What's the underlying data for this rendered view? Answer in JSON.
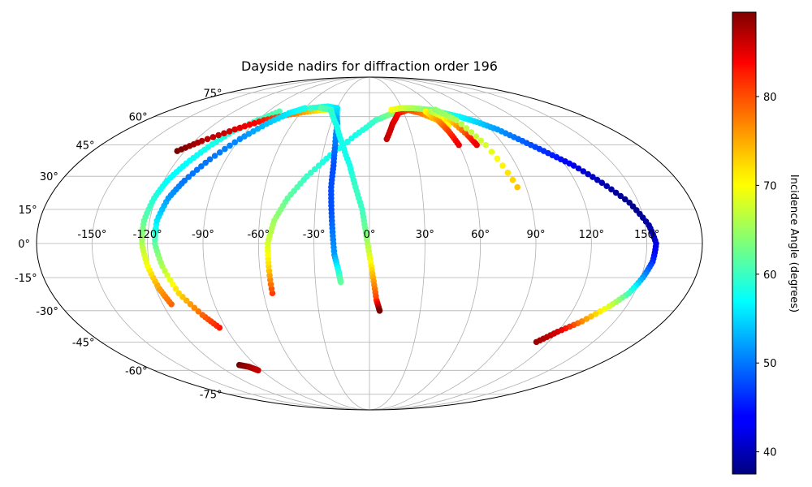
{
  "chart_data": {
    "type": "scatter",
    "projection": "mollweide",
    "title": "Dayside nadirs for diffraction order 196",
    "xlabel": "",
    "ylabel": "",
    "grid": true,
    "xlim": [
      -180,
      180
    ],
    "ylim": [
      -90,
      90
    ],
    "lon_ticks": [
      -150,
      -120,
      -90,
      -60,
      -30,
      0,
      30,
      60,
      90,
      120,
      150
    ],
    "lon_tick_labels": [
      "-150°",
      "-120°",
      "-90°",
      "-60°",
      "-30°",
      "0°",
      "30°",
      "60°",
      "90°",
      "120°",
      "150°"
    ],
    "lat_ticks": [
      -75,
      -60,
      -45,
      -30,
      -15,
      0,
      15,
      30,
      45,
      60,
      75
    ],
    "lat_tick_labels": [
      "-75°",
      "-60°",
      "-45°",
      "-30°",
      "-15°",
      "0°",
      "15°",
      "30°",
      "45°",
      "60°",
      "75°"
    ],
    "colormap": "jet",
    "colorbar": {
      "label": "Incidence Angle (degrees)",
      "range": [
        37.5,
        89.5
      ],
      "ticks": [
        40,
        50,
        60,
        70,
        80
      ],
      "tick_labels": [
        "40",
        "50",
        "60",
        "70",
        "80"
      ]
    },
    "series": [
      {
        "points": [
          [
            -115,
            -27,
            78
          ],
          [
            -118,
            -20,
            75
          ],
          [
            -121,
            -10,
            70
          ],
          [
            -123,
            0,
            66
          ],
          [
            -123,
            10,
            62
          ],
          [
            -121,
            20,
            59
          ],
          [
            -118,
            28,
            57
          ],
          [
            -113,
            36,
            57
          ],
          [
            -107,
            44,
            58
          ],
          [
            -100,
            52,
            59
          ],
          [
            -90,
            58,
            60
          ],
          [
            -80,
            63,
            61
          ]
        ]
      },
      {
        "points": [
          [
            -125,
            42,
            90
          ],
          [
            -115,
            47,
            87
          ],
          [
            -100,
            53,
            85
          ],
          [
            -85,
            58,
            82
          ],
          [
            -70,
            61,
            78
          ],
          [
            -55,
            63,
            74
          ],
          [
            -40,
            64,
            70
          ],
          [
            -30,
            65,
            68
          ]
        ]
      },
      {
        "points": [
          [
            -94,
            -38,
            82
          ],
          [
            -100,
            -32,
            78
          ],
          [
            -108,
            -22,
            72
          ],
          [
            -113,
            -10,
            66
          ],
          [
            -116,
            0,
            62
          ],
          [
            -116,
            10,
            56
          ],
          [
            -113,
            20,
            52
          ],
          [
            -108,
            28,
            50
          ],
          [
            -100,
            38,
            50
          ],
          [
            -90,
            48,
            51
          ],
          [
            -80,
            56,
            54
          ],
          [
            -70,
            62,
            56
          ],
          [
            -60,
            65,
            58
          ]
        ]
      },
      {
        "points": [
          [
            -55,
            -22,
            80
          ],
          [
            -55,
            -10,
            72
          ],
          [
            -55,
            0,
            68
          ],
          [
            -52,
            10,
            65
          ],
          [
            -46,
            20,
            62
          ],
          [
            -37,
            30,
            60
          ],
          [
            -25,
            40,
            58
          ],
          [
            -10,
            50,
            58
          ],
          [
            5,
            58,
            60
          ],
          [
            20,
            62,
            64
          ],
          [
            40,
            65,
            66
          ]
        ]
      },
      {
        "points": [
          [
            -55,
            65,
            60
          ],
          [
            -40,
            66,
            58
          ],
          [
            -30,
            65,
            56
          ],
          [
            -25,
            56,
            52
          ],
          [
            -23,
            45,
            50
          ],
          [
            -22,
            35,
            48
          ],
          [
            -22,
            25,
            48
          ],
          [
            -21,
            15,
            48
          ],
          [
            -20,
            5,
            50
          ],
          [
            -19,
            -5,
            52
          ],
          [
            -17,
            -12,
            58
          ],
          [
            -16,
            -17,
            62
          ]
        ]
      },
      {
        "points": [
          [
            -45,
            65,
            62
          ],
          [
            -35,
            64,
            60
          ],
          [
            -25,
            55,
            58
          ],
          [
            -18,
            45,
            58
          ],
          [
            -12,
            35,
            58
          ],
          [
            -8,
            25,
            60
          ],
          [
            -4,
            15,
            60
          ],
          [
            -2,
            5,
            63
          ],
          [
            0,
            -5,
            68
          ],
          [
            2,
            -15,
            74
          ],
          [
            4,
            -25,
            80
          ],
          [
            6,
            -30,
            90
          ]
        ]
      },
      {
        "points": [
          [
            12,
            48,
            86
          ],
          [
            18,
            56,
            85
          ],
          [
            25,
            62,
            83
          ],
          [
            35,
            64,
            80
          ],
          [
            45,
            62,
            77
          ],
          [
            55,
            58,
            72
          ],
          [
            60,
            55,
            70
          ]
        ]
      },
      {
        "points": [
          [
            20,
            64,
            70
          ],
          [
            30,
            65,
            68
          ],
          [
            40,
            65,
            66
          ],
          [
            55,
            64,
            63
          ],
          [
            65,
            62,
            60
          ],
          [
            75,
            60,
            57
          ],
          [
            85,
            57,
            55
          ],
          [
            95,
            53,
            52
          ],
          [
            105,
            47,
            49
          ],
          [
            115,
            41,
            46
          ],
          [
            125,
            35,
            43
          ],
          [
            135,
            27,
            40
          ],
          [
            145,
            18,
            38
          ],
          [
            152,
            8,
            39
          ],
          [
            155,
            0,
            42
          ],
          [
            154,
            -8,
            46
          ],
          [
            151,
            -15,
            52
          ],
          [
            147,
            -22,
            60
          ],
          [
            140,
            -28,
            68
          ],
          [
            130,
            -35,
            76
          ],
          [
            120,
            -40,
            85
          ],
          [
            112,
            -45,
            88
          ]
        ]
      },
      {
        "points": [
          [
            50,
            63,
            70
          ],
          [
            55,
            58,
            75
          ],
          [
            58,
            52,
            80
          ],
          [
            60,
            45,
            84
          ]
        ]
      },
      {
        "points": [
          [
            55,
            63,
            66
          ],
          [
            65,
            58,
            72
          ],
          [
            70,
            50,
            80
          ],
          [
            72,
            45,
            84
          ]
        ]
      },
      {
        "points": [
          [
            60,
            64,
            64
          ],
          [
            70,
            58,
            66
          ],
          [
            78,
            45,
            68
          ],
          [
            85,
            25,
            73
          ]
        ]
      },
      {
        "points": [
          [
            -103,
            -57,
            90
          ],
          [
            -97,
            -58,
            88
          ],
          [
            -93,
            -60,
            86
          ]
        ]
      }
    ]
  }
}
